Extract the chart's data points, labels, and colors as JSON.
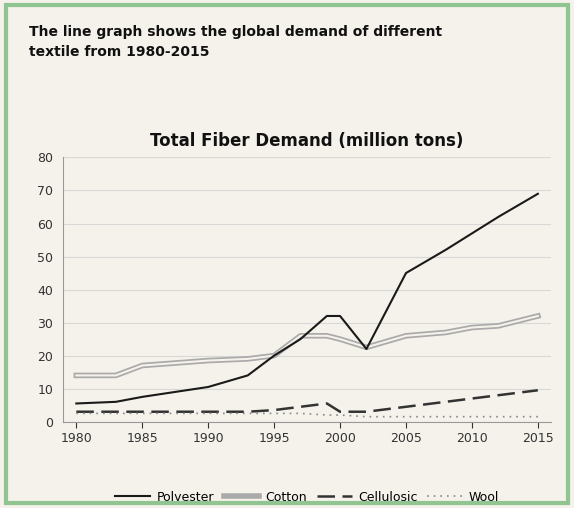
{
  "title_main": "The line graph shows the global demand of different\ntextile from 1980-2015",
  "title_sub": "Total Fiber Demand (million tons)",
  "background_color": "#f5f2eb",
  "plot_bg_color": "#f5f2eb",
  "border_color": "#90c490",
  "years": [
    1980,
    1983,
    1985,
    1990,
    1993,
    1995,
    1997,
    1999,
    2000,
    2002,
    2005,
    2008,
    2010,
    2012,
    2015
  ],
  "polyester": [
    5.5,
    6.0,
    7.5,
    10.5,
    14.0,
    20.0,
    25.0,
    32.0,
    32.0,
    22.0,
    45.0,
    52.0,
    57.0,
    62.0,
    69.0
  ],
  "cotton": [
    14.0,
    14.0,
    17.0,
    18.5,
    19.0,
    20.0,
    26.0,
    26.0,
    25.0,
    22.5,
    26.0,
    27.0,
    28.5,
    29.0,
    32.0
  ],
  "cellulosic": [
    3.0,
    3.0,
    3.0,
    3.0,
    3.0,
    3.5,
    4.5,
    5.5,
    3.0,
    3.0,
    4.5,
    6.0,
    7.0,
    8.0,
    9.5
  ],
  "wool": [
    2.5,
    2.5,
    2.5,
    2.5,
    2.5,
    2.5,
    2.5,
    2.0,
    2.0,
    1.5,
    1.5,
    1.5,
    1.5,
    1.5,
    1.5
  ],
  "ylim": [
    0,
    80
  ],
  "yticks": [
    0,
    10,
    20,
    30,
    40,
    50,
    60,
    70,
    80
  ],
  "xticks": [
    1980,
    1985,
    1990,
    1995,
    2000,
    2005,
    2010,
    2015
  ],
  "xlim": [
    1979,
    2016
  ],
  "polyester_color": "#1a1a1a",
  "cotton_color": "#aaaaaa",
  "cellulosic_color": "#333333",
  "wool_color": "#888888",
  "grid_color": "#d8d8d8",
  "title_fontsize": 10,
  "subtitle_fontsize": 12,
  "tick_fontsize": 9,
  "legend_fontsize": 9
}
